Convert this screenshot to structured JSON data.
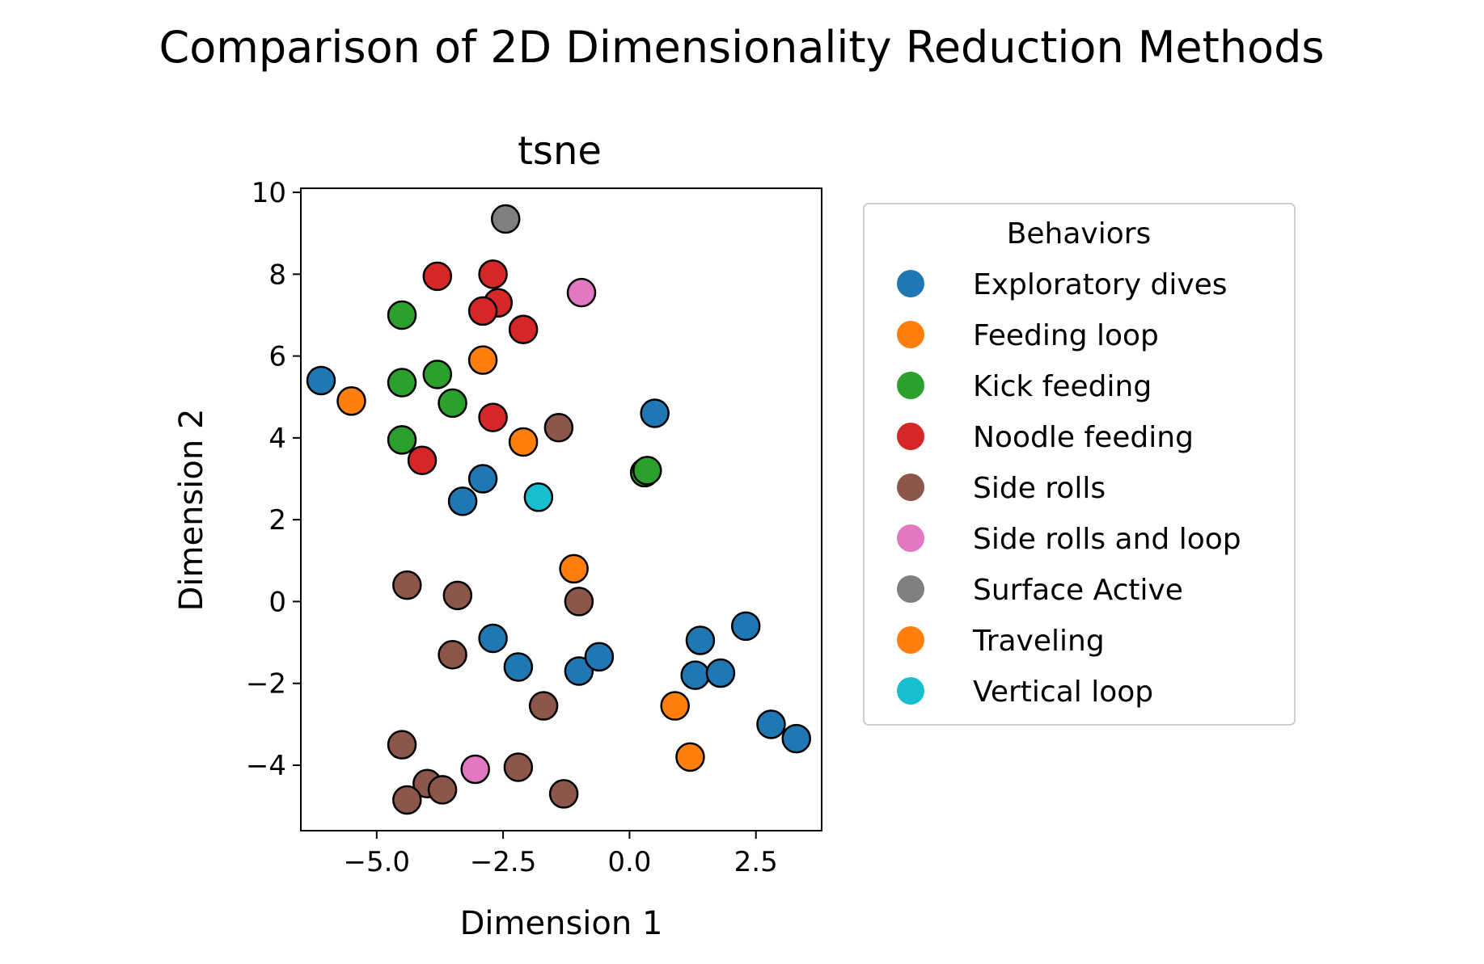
{
  "figure": {
    "suptitle": "Comparison of 2D Dimensionality Reduction Methods"
  },
  "chart_data": {
    "type": "scatter",
    "title": "tsne",
    "xlabel": "Dimension 1",
    "ylabel": "Dimension 2",
    "xlim": [
      -6.5,
      3.8
    ],
    "ylim": [
      -5.6,
      10.1
    ],
    "xticks": [
      -5.0,
      -2.5,
      0.0,
      2.5
    ],
    "xtick_labels": [
      "−5.0",
      "−2.5",
      "0.0",
      "2.5"
    ],
    "yticks": [
      -4,
      -2,
      0,
      2,
      4,
      6,
      8,
      10
    ],
    "ytick_labels": [
      "−4",
      "−2",
      "0",
      "2",
      "4",
      "6",
      "8",
      "10"
    ],
    "grid": false,
    "legend": {
      "title": "Behaviors",
      "placement": "outside-right"
    },
    "series": [
      {
        "name": "Exploratory dives",
        "color": "#1f77b4",
        "x": [
          -6.1,
          0.5,
          -2.9,
          -3.3,
          -2.7,
          -2.2,
          -1.0,
          -0.6,
          1.4,
          2.3,
          1.3,
          1.8,
          2.8,
          3.3
        ],
        "y": [
          5.4,
          4.6,
          3.0,
          2.45,
          -0.9,
          -1.6,
          -1.7,
          -1.35,
          -0.95,
          -0.6,
          -1.8,
          -1.75,
          -3.0,
          -3.35
        ]
      },
      {
        "name": "Feeding loop",
        "color": "#ff7f0e",
        "x": [
          -5.5,
          -2.9,
          -2.1,
          -1.1,
          0.9,
          1.2
        ],
        "y": [
          4.9,
          5.9,
          3.9,
          0.8,
          -2.55,
          -3.8
        ]
      },
      {
        "name": "Kick feeding",
        "color": "#2ca02c",
        "x": [
          -4.5,
          -4.5,
          -3.8,
          -3.5,
          -4.5,
          0.3,
          0.35
        ],
        "y": [
          7.0,
          5.35,
          5.55,
          4.85,
          3.95,
          3.15,
          3.2
        ]
      },
      {
        "name": "Noodle feeding",
        "color": "#d62728",
        "x": [
          -3.8,
          -2.7,
          -2.6,
          -2.9,
          -2.1,
          -2.7,
          -4.1
        ],
        "y": [
          7.95,
          8.0,
          7.3,
          7.1,
          6.65,
          4.5,
          3.45
        ]
      },
      {
        "name": "Side rolls",
        "color": "#8c564b",
        "x": [
          -1.4,
          -4.4,
          -3.4,
          -1.0,
          -3.5,
          -1.7,
          -4.5,
          -2.2,
          -1.3,
          -4.0,
          -3.7,
          -4.4
        ],
        "y": [
          4.25,
          0.4,
          0.15,
          0.0,
          -1.3,
          -2.55,
          -3.5,
          -4.05,
          -4.7,
          -4.45,
          -4.6,
          -4.85
        ]
      },
      {
        "name": "Side rolls and loop",
        "color": "#e377c2",
        "x": [
          -0.95,
          -3.05
        ],
        "y": [
          7.55,
          -4.1
        ]
      },
      {
        "name": "Surface Active",
        "color": "#7f7f7f",
        "x": [
          -2.45
        ],
        "y": [
          9.35
        ]
      },
      {
        "name": "Traveling",
        "color": "#ff7f0e",
        "x": [],
        "y": []
      },
      {
        "name": "Vertical loop",
        "color": "#17becf",
        "x": [
          -1.8
        ],
        "y": [
          2.55
        ]
      }
    ]
  }
}
